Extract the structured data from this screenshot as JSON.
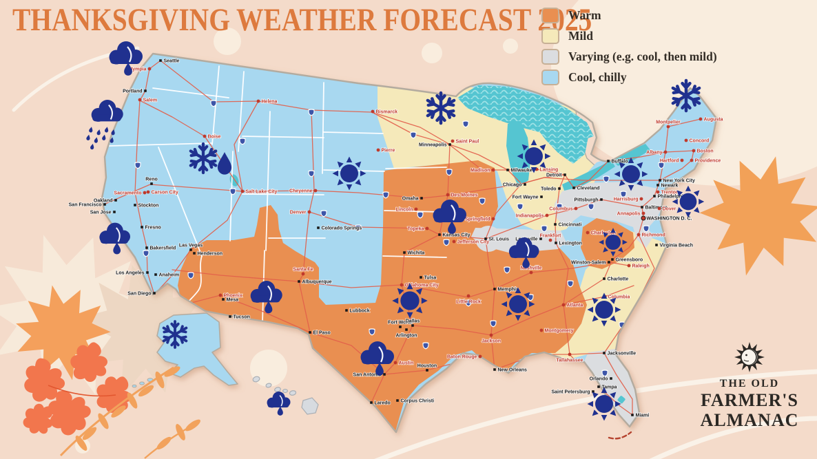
{
  "title": "THANKSGIVING WEATHER FORECAST 2025",
  "legend": {
    "items": [
      {
        "key": "warm",
        "label": "Warm",
        "color": "#E98F51"
      },
      {
        "key": "mild",
        "label": "Mild",
        "color": "#F5E9BA"
      },
      {
        "key": "varying",
        "label": "Varying (e.g. cool, then mild)",
        "color": "#DBDDE0"
      },
      {
        "key": "cool",
        "label": "Cool, chilly",
        "color": "#A8D8F0"
      }
    ]
  },
  "logo": {
    "line1": "THE OLD",
    "line2": "FARMER'S",
    "line3": "ALMANAC",
    "icon": "sun-face-icon"
  },
  "map": {
    "colors": {
      "background": "#F4DBCA",
      "blob": "#F9EDDE",
      "title": "#DD7A3E",
      "icon_navy": "#20318F",
      "road": "#E2604B",
      "lake": "#55C5D1",
      "lake_light": "#9FE2E6",
      "capital_red": "#C0392B",
      "city_black": "#1A1A1A",
      "outline": "#B3AB9F",
      "legend_text": "#332D26",
      "logo_ink": "#2B2824",
      "swatch_border": "#C7B096",
      "leaf_light_orange": "#F4A05C",
      "leaf_red_orange": "#F2764D",
      "leaf_pale": "#F7EADA",
      "leaf_shadow": "#EDD7C3",
      "shield_blue": "#3C55A8"
    },
    "cities": [
      [
        "Seattle",
        233,
        88,
        "city",
        "r"
      ],
      [
        "Olympia",
        217,
        100,
        "capital",
        "l"
      ],
      [
        "Portland",
        211,
        132,
        "city",
        "l"
      ],
      [
        "Salem",
        203,
        145,
        "capital",
        "r"
      ],
      [
        "Helena",
        375,
        147,
        "capital",
        "r"
      ],
      [
        "Boise",
        297,
        198,
        "capital",
        "r"
      ],
      [
        "Salt Lake City",
        352,
        278,
        "capital",
        "r"
      ],
      [
        "Sacramento",
        210,
        280,
        "capital",
        "l"
      ],
      [
        "Carson City",
        215,
        279,
        "capital",
        "r"
      ],
      [
        "Reno",
        220,
        267,
        "city",
        "a"
      ],
      [
        "San Francisco",
        152,
        297,
        "city",
        "l"
      ],
      [
        "Oakland",
        168,
        291,
        "city",
        "l"
      ],
      [
        "Stockton",
        196,
        298,
        "city",
        "r"
      ],
      [
        "San Jose",
        166,
        308,
        "city",
        "l"
      ],
      [
        "Fresno",
        206,
        330,
        "city",
        "r"
      ],
      [
        "Bakersfield",
        213,
        360,
        "city",
        "r"
      ],
      [
        "Los Angeles",
        214,
        396,
        "city",
        "l"
      ],
      [
        "Anaheim",
        226,
        399,
        "city",
        "r"
      ],
      [
        "San Diego",
        224,
        426,
        "city",
        "l"
      ],
      [
        "Las Vegas",
        277,
        363,
        "city",
        "a"
      ],
      [
        "Henderson",
        282,
        368,
        "city",
        "r"
      ],
      [
        "Cheyenne",
        458,
        277,
        "capital",
        "l"
      ],
      [
        "Denver",
        449,
        308,
        "capital",
        "l"
      ],
      [
        "Colorado Springs",
        462,
        331,
        "city",
        "r"
      ],
      [
        "Bismarck",
        541,
        162,
        "capital",
        "r"
      ],
      [
        "Pierre",
        549,
        218,
        "capital",
        "r"
      ],
      [
        "Minneapolis",
        653,
        210,
        "city",
        "l"
      ],
      [
        "Saint Paul",
        657,
        205,
        "capital",
        "r"
      ],
      [
        "Madison",
        716,
        247,
        "capital",
        "l"
      ],
      [
        "Milwaukee",
        737,
        247,
        "city",
        "r"
      ],
      [
        "Lansing",
        779,
        246,
        "capital",
        "r"
      ],
      [
        "Detroit",
        820,
        254,
        "city",
        "l"
      ],
      [
        "Chicago",
        762,
        268,
        "city",
        "l"
      ],
      [
        "Toledo",
        812,
        274,
        "city",
        "l"
      ],
      [
        "Cleveland",
        833,
        273,
        "city",
        "r"
      ],
      [
        "Fort Wayne",
        786,
        286,
        "city",
        "l"
      ],
      [
        "Columbus",
        836,
        303,
        "capital",
        "l"
      ],
      [
        "Indianapolis",
        794,
        313,
        "capital",
        "l"
      ],
      [
        "Cincinnati",
        806,
        326,
        "city",
        "r"
      ],
      [
        "Springfield",
        716,
        318,
        "capital",
        "l"
      ],
      [
        "Des Moines",
        650,
        283,
        "capital",
        "r"
      ],
      [
        "Omaha",
        612,
        288,
        "city",
        "l"
      ],
      [
        "Lincoln",
        604,
        304,
        "capital",
        "l"
      ],
      [
        "Topeka",
        620,
        332,
        "capital",
        "l"
      ],
      [
        "Kansas City",
        638,
        341,
        "city",
        "r"
      ],
      [
        "Jefferson City",
        659,
        351,
        "capital",
        "r"
      ],
      [
        "Wichita",
        587,
        367,
        "city",
        "r"
      ],
      [
        "St. Louis",
        705,
        347,
        "city",
        "r"
      ],
      [
        "Louisville",
        785,
        347,
        "city",
        "l"
      ],
      [
        "Frankfort",
        799,
        349,
        "capital",
        "a"
      ],
      [
        "Lexington",
        807,
        353,
        "city",
        "r"
      ],
      [
        "Charleston",
        853,
        338,
        "capital",
        "r"
      ],
      [
        "Richmond",
        927,
        341,
        "capital",
        "r"
      ],
      [
        "Virginia Beach",
        953,
        356,
        "city",
        "r"
      ],
      [
        "Winston-Salem",
        884,
        381,
        "city",
        "l"
      ],
      [
        "Greensboro",
        889,
        377,
        "city",
        "r"
      ],
      [
        "Raleigh",
        913,
        386,
        "capital",
        "r"
      ],
      [
        "Charlotte",
        877,
        405,
        "city",
        "r"
      ],
      [
        "Nashville",
        771,
        396,
        "capital",
        "a"
      ],
      [
        "Memphis",
        718,
        420,
        "city",
        "r"
      ],
      [
        "Columbia",
        878,
        431,
        "capital",
        "r"
      ],
      [
        "Atlanta",
        818,
        443,
        "capital",
        "r"
      ],
      [
        "Montgomery",
        786,
        480,
        "capital",
        "r"
      ],
      [
        "Jackson",
        713,
        487,
        "capital",
        "b"
      ],
      [
        "New Orleans",
        718,
        537,
        "city",
        "r"
      ],
      [
        "Baton Rouge",
        697,
        518,
        "capital",
        "l"
      ],
      [
        "Tallahassee",
        827,
        515,
        "capital",
        "b"
      ],
      [
        "Jacksonville",
        877,
        513,
        "city",
        "r"
      ],
      [
        "Orlando",
        887,
        550,
        "city",
        "l"
      ],
      [
        "Tampa",
        869,
        562,
        "city",
        "r"
      ],
      [
        "Saint Petersburg",
        861,
        569,
        "city",
        "l"
      ],
      [
        "Miami",
        918,
        603,
        "city",
        "r"
      ],
      [
        "Buffalo",
        883,
        234,
        "city",
        "r"
      ],
      [
        "Albany",
        966,
        221,
        "capital",
        "l"
      ],
      [
        "Montpelier",
        970,
        184,
        "capital",
        "a"
      ],
      [
        "Augusta",
        1017,
        173,
        "capital",
        "r"
      ],
      [
        "Concord",
        996,
        204,
        "capital",
        "r"
      ],
      [
        "Boston",
        1007,
        219,
        "capital",
        "r"
      ],
      [
        "Providence",
        1004,
        233,
        "capital",
        "r"
      ],
      [
        "Hartford",
        990,
        233,
        "capital",
        "l"
      ],
      [
        "New York City",
        958,
        262,
        "city",
        "r"
      ],
      [
        "Newark",
        955,
        269,
        "city",
        "r"
      ],
      [
        "Trenton",
        955,
        279,
        "capital",
        "r"
      ],
      [
        "Philadelphia",
        950,
        285,
        "city",
        "r"
      ],
      [
        "Pittsburgh",
        873,
        290,
        "city",
        "l"
      ],
      [
        "Harrisburg",
        931,
        289,
        "capital",
        "l"
      ],
      [
        "Baltimore",
        932,
        301,
        "city",
        "r"
      ],
      [
        "Dover",
        957,
        303,
        "capital",
        "r"
      ],
      [
        "Annapolis",
        934,
        310,
        "capital",
        "l"
      ],
      [
        "WASHINGTON D. C.",
        934,
        317,
        "dc",
        "r"
      ],
      [
        "Santa Fe",
        440,
        398,
        "capital",
        "a"
      ],
      [
        "Albuquerque",
        434,
        409,
        "city",
        "r"
      ],
      [
        "Lubbock",
        503,
        451,
        "city",
        "r"
      ],
      [
        "El Paso",
        450,
        483,
        "city",
        "r"
      ],
      [
        "Phoenix",
        320,
        429,
        "capital",
        "r"
      ],
      [
        "Mesa",
        324,
        435,
        "city",
        "r"
      ],
      [
        "Tucson",
        334,
        460,
        "city",
        "r"
      ],
      [
        "Tulsa",
        611,
        403,
        "city",
        "r"
      ],
      [
        "Oklahoma City",
        583,
        414,
        "capital",
        "r"
      ],
      [
        "Little Rock",
        680,
        430,
        "capital",
        "b"
      ],
      [
        "Fort Worth",
        581,
        475,
        "city",
        "a"
      ],
      [
        "Dallas",
        599,
        473,
        "city",
        "a"
      ],
      [
        "Arlington",
        590,
        479,
        "city",
        "b"
      ],
      [
        "Austin",
        574,
        527,
        "capital",
        "r"
      ],
      [
        "Houston",
        620,
        538,
        "city",
        "a"
      ],
      [
        "San Antonio",
        558,
        544,
        "city",
        "l"
      ],
      [
        "Laredo",
        539,
        585,
        "city",
        "r"
      ],
      [
        "Corpus Christi",
        577,
        582,
        "city",
        "r"
      ]
    ],
    "icons": [
      [
        "cloud-drop",
        182,
        80,
        1
      ],
      [
        "rain-cloud",
        155,
        164,
        0.95
      ],
      [
        "snow-drop",
        295,
        230,
        1
      ],
      [
        "cloud-drop",
        166,
        342,
        0.92
      ],
      [
        "snowflake",
        254,
        486,
        0.9
      ],
      [
        "cloud-drop",
        404,
        583,
        0.7
      ],
      [
        "cloud-drop",
        386,
        427,
        0.95
      ],
      [
        "sun",
        507,
        252,
        1
      ],
      [
        "snowflake",
        640,
        157,
        1.05
      ],
      [
        "cloud-drop",
        652,
        310,
        1
      ],
      [
        "sun",
        595,
        437,
        1.05
      ],
      [
        "cloud-drop",
        547,
        516,
        1
      ],
      [
        "sun",
        775,
        227,
        1
      ],
      [
        "cloud-drop",
        760,
        363,
        0.9
      ],
      [
        "sun",
        916,
        253,
        1
      ],
      [
        "snowflake",
        996,
        139,
        1.05
      ],
      [
        "sun",
        999,
        293,
        0.95
      ],
      [
        "sun",
        890,
        352,
        0.85
      ],
      [
        "sun",
        752,
        442,
        1
      ],
      [
        "sun",
        877,
        450,
        1
      ],
      [
        "sun",
        877,
        587,
        1
      ]
    ]
  }
}
